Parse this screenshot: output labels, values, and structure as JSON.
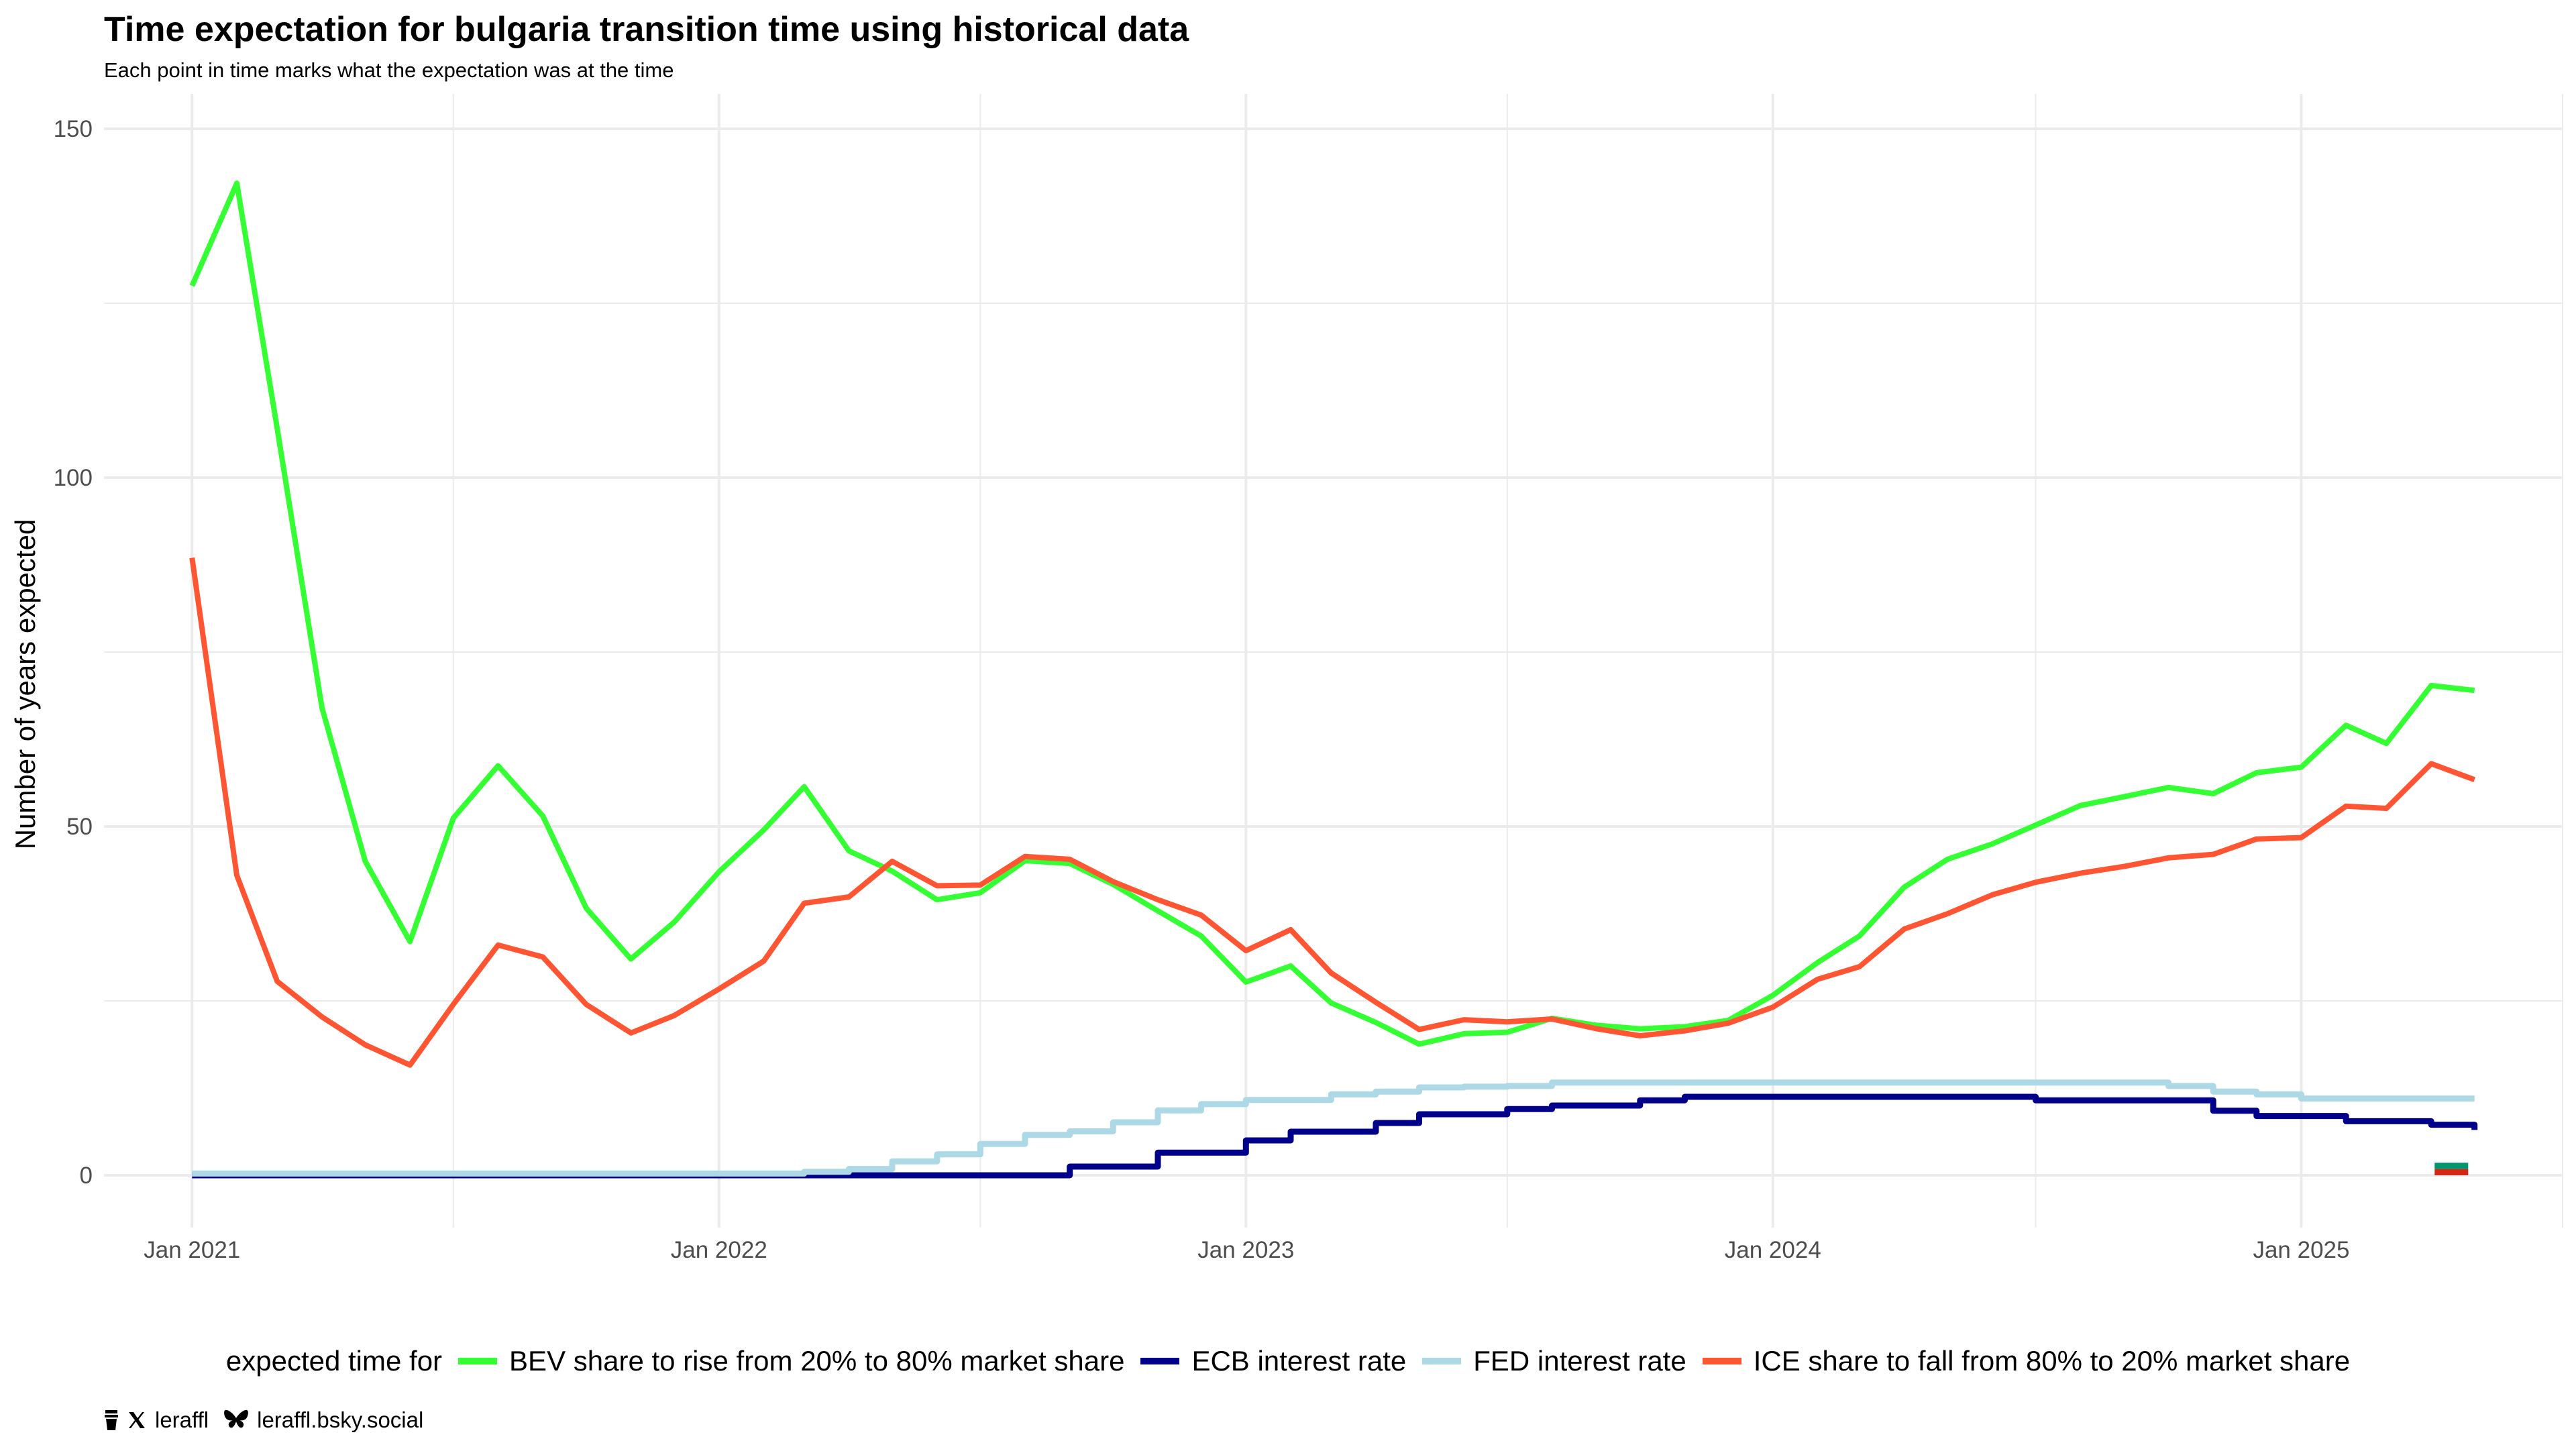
{
  "title": "Time expectation for bulgaria transition time using historical data",
  "subtitle": "Each point in time marks what the expectation was at the time",
  "legend_title": "expected time for",
  "footer": {
    "handle": "leraffl",
    "bsky": "leraffl.bsky.social"
  },
  "chart_data": {
    "type": "line",
    "ylabel": "Number of years expected",
    "xlabel": "",
    "x_ticks": [
      "Jan 2021",
      "Jan 2022",
      "Jan 2023",
      "Jan 2024",
      "Jan 2025"
    ],
    "y_ticks": [
      0,
      50,
      100,
      150
    ],
    "ylim": [
      -7.5,
      155
    ],
    "xlim": [
      "2020-11-01",
      "2025-07-01"
    ],
    "grid": true,
    "legend_position": "bottom",
    "series": [
      {
        "name": "BEV share to rise from 20% to 80% market share",
        "color": "#33ff33",
        "step": false,
        "points": [
          [
            "2021-01-01",
            127.5
          ],
          [
            "2021-02-01",
            142.2
          ],
          [
            "2021-03-01",
            107.0
          ],
          [
            "2021-04-01",
            67.0
          ],
          [
            "2021-05-01",
            45.0
          ],
          [
            "2021-06-01",
            33.5
          ],
          [
            "2021-07-01",
            51.2
          ],
          [
            "2021-08-01",
            58.7
          ],
          [
            "2021-09-01",
            51.5
          ],
          [
            "2021-10-01",
            38.3
          ],
          [
            "2021-11-01",
            31.0
          ],
          [
            "2021-12-01",
            36.3
          ],
          [
            "2022-01-01",
            43.5
          ],
          [
            "2022-02-01",
            49.5
          ],
          [
            "2022-03-01",
            55.7
          ],
          [
            "2022-04-01",
            46.5
          ],
          [
            "2022-05-01",
            43.6
          ],
          [
            "2022-06-01",
            39.5
          ],
          [
            "2022-07-01",
            40.5
          ],
          [
            "2022-08-01",
            45.1
          ],
          [
            "2022-09-01",
            44.7
          ],
          [
            "2022-10-01",
            41.7
          ],
          [
            "2022-11-01",
            37.9
          ],
          [
            "2022-12-01",
            34.3
          ],
          [
            "2023-01-01",
            27.7
          ],
          [
            "2023-02-01",
            30.0
          ],
          [
            "2023-03-01",
            24.7
          ],
          [
            "2023-04-01",
            21.9
          ],
          [
            "2023-05-01",
            18.8
          ],
          [
            "2023-06-01",
            20.3
          ],
          [
            "2023-07-01",
            20.5
          ],
          [
            "2023-08-01",
            22.5
          ],
          [
            "2023-09-01",
            21.5
          ],
          [
            "2023-10-01",
            21.0
          ],
          [
            "2023-11-01",
            21.3
          ],
          [
            "2023-12-01",
            22.2
          ],
          [
            "2024-01-01",
            25.8
          ],
          [
            "2024-02-01",
            30.5
          ],
          [
            "2024-03-01",
            34.3
          ],
          [
            "2024-04-01",
            41.3
          ],
          [
            "2024-05-01",
            45.3
          ],
          [
            "2024-06-01",
            47.5
          ],
          [
            "2024-07-01",
            50.2
          ],
          [
            "2024-08-01",
            53.0
          ],
          [
            "2024-09-01",
            54.3
          ],
          [
            "2024-10-01",
            55.6
          ],
          [
            "2024-11-01",
            54.7
          ],
          [
            "2024-12-01",
            57.7
          ],
          [
            "2025-01-01",
            58.5
          ],
          [
            "2025-02-01",
            64.5
          ],
          [
            "2025-03-01",
            61.9
          ],
          [
            "2025-04-01",
            70.2
          ],
          [
            "2025-05-01",
            69.5
          ]
        ]
      },
      {
        "name": "ECB interest rate",
        "color": "#00008b",
        "step": true,
        "points": [
          [
            "2021-01-01",
            0.0
          ],
          [
            "2022-06-01",
            0.0
          ],
          [
            "2022-07-01",
            0.0
          ],
          [
            "2022-08-01",
            0.0
          ],
          [
            "2022-09-01",
            1.25
          ],
          [
            "2022-10-01",
            1.25
          ],
          [
            "2022-11-01",
            3.25
          ],
          [
            "2022-12-01",
            3.25
          ],
          [
            "2023-01-01",
            5.0
          ],
          [
            "2023-02-01",
            6.25
          ],
          [
            "2023-03-01",
            6.25
          ],
          [
            "2023-04-01",
            7.5
          ],
          [
            "2023-05-01",
            8.75
          ],
          [
            "2023-06-01",
            8.75
          ],
          [
            "2023-07-01",
            9.5
          ],
          [
            "2023-08-01",
            10.0
          ],
          [
            "2023-09-01",
            10.0
          ],
          [
            "2023-10-01",
            10.75
          ],
          [
            "2023-11-01",
            11.25
          ],
          [
            "2024-06-01",
            11.25
          ],
          [
            "2024-07-01",
            10.75
          ],
          [
            "2024-08-01",
            10.75
          ],
          [
            "2024-09-01",
            10.75
          ],
          [
            "2024-10-01",
            10.75
          ],
          [
            "2024-11-01",
            9.25
          ],
          [
            "2024-12-01",
            8.5
          ],
          [
            "2025-01-01",
            8.5
          ],
          [
            "2025-02-01",
            7.75
          ],
          [
            "2025-03-01",
            7.75
          ],
          [
            "2025-04-01",
            7.25
          ],
          [
            "2025-05-01",
            6.5
          ]
        ]
      },
      {
        "name": "FED interest rate",
        "color": "#add8e6",
        "step": true,
        "points": [
          [
            "2021-01-01",
            0.25
          ],
          [
            "2022-02-01",
            0.25
          ],
          [
            "2022-03-01",
            0.5
          ],
          [
            "2022-04-01",
            0.9
          ],
          [
            "2022-05-01",
            2.0
          ],
          [
            "2022-06-01",
            3.0
          ],
          [
            "2022-07-01",
            4.5
          ],
          [
            "2022-08-01",
            5.8
          ],
          [
            "2022-09-01",
            6.3
          ],
          [
            "2022-10-01",
            7.6
          ],
          [
            "2022-11-01",
            9.3
          ],
          [
            "2022-12-01",
            10.2
          ],
          [
            "2023-01-01",
            10.8
          ],
          [
            "2023-02-01",
            10.8
          ],
          [
            "2023-03-01",
            11.6
          ],
          [
            "2023-04-01",
            12.0
          ],
          [
            "2023-05-01",
            12.6
          ],
          [
            "2023-06-01",
            12.7
          ],
          [
            "2023-07-01",
            12.8
          ],
          [
            "2023-08-01",
            13.3
          ],
          [
            "2024-09-01",
            13.3
          ],
          [
            "2024-10-01",
            12.8
          ],
          [
            "2024-11-01",
            12.0
          ],
          [
            "2024-12-01",
            11.6
          ],
          [
            "2025-01-01",
            11.0
          ],
          [
            "2025-05-01",
            11.0
          ]
        ]
      },
      {
        "name": "ICE share to fall from 80% to 20% market share",
        "color": "#ff5533",
        "step": false,
        "points": [
          [
            "2021-01-01",
            88.5
          ],
          [
            "2021-02-01",
            43.0
          ],
          [
            "2021-03-01",
            27.8
          ],
          [
            "2021-04-01",
            22.7
          ],
          [
            "2021-05-01",
            18.7
          ],
          [
            "2021-06-01",
            15.8
          ],
          [
            "2021-07-01",
            24.5
          ],
          [
            "2021-08-01",
            33.0
          ],
          [
            "2021-09-01",
            31.3
          ],
          [
            "2021-10-01",
            24.5
          ],
          [
            "2021-11-01",
            20.4
          ],
          [
            "2021-12-01",
            22.9
          ],
          [
            "2022-01-01",
            26.7
          ],
          [
            "2022-02-01",
            30.7
          ],
          [
            "2022-03-01",
            39.0
          ],
          [
            "2022-04-01",
            39.9
          ],
          [
            "2022-05-01",
            45.0
          ],
          [
            "2022-06-01",
            41.5
          ],
          [
            "2022-07-01",
            41.6
          ],
          [
            "2022-08-01",
            45.7
          ],
          [
            "2022-09-01",
            45.3
          ],
          [
            "2022-10-01",
            42.1
          ],
          [
            "2022-11-01",
            39.5
          ],
          [
            "2022-12-01",
            37.3
          ],
          [
            "2023-01-01",
            32.2
          ],
          [
            "2023-02-01",
            35.2
          ],
          [
            "2023-03-01",
            29.0
          ],
          [
            "2023-04-01",
            24.8
          ],
          [
            "2023-05-01",
            20.9
          ],
          [
            "2023-06-01",
            22.3
          ],
          [
            "2023-07-01",
            22.0
          ],
          [
            "2023-08-01",
            22.4
          ],
          [
            "2023-09-01",
            21.0
          ],
          [
            "2023-10-01",
            20.0
          ],
          [
            "2023-11-01",
            20.7
          ],
          [
            "2023-12-01",
            21.8
          ],
          [
            "2024-01-01",
            24.1
          ],
          [
            "2024-02-01",
            28.1
          ],
          [
            "2024-03-01",
            29.9
          ],
          [
            "2024-04-01",
            35.3
          ],
          [
            "2024-05-01",
            37.5
          ],
          [
            "2024-06-01",
            40.2
          ],
          [
            "2024-07-01",
            42.0
          ],
          [
            "2024-08-01",
            43.3
          ],
          [
            "2024-09-01",
            44.3
          ],
          [
            "2024-10-01",
            45.5
          ],
          [
            "2024-11-01",
            46.0
          ],
          [
            "2024-12-01",
            48.2
          ],
          [
            "2025-01-01",
            48.4
          ],
          [
            "2025-02-01",
            52.9
          ],
          [
            "2025-03-01",
            52.6
          ],
          [
            "2025-04-01",
            59.0
          ],
          [
            "2025-05-01",
            56.7
          ]
        ]
      }
    ],
    "flag_marker": {
      "date": "2025-04-15",
      "colors": [
        "#00966e",
        "#d62612"
      ]
    }
  }
}
